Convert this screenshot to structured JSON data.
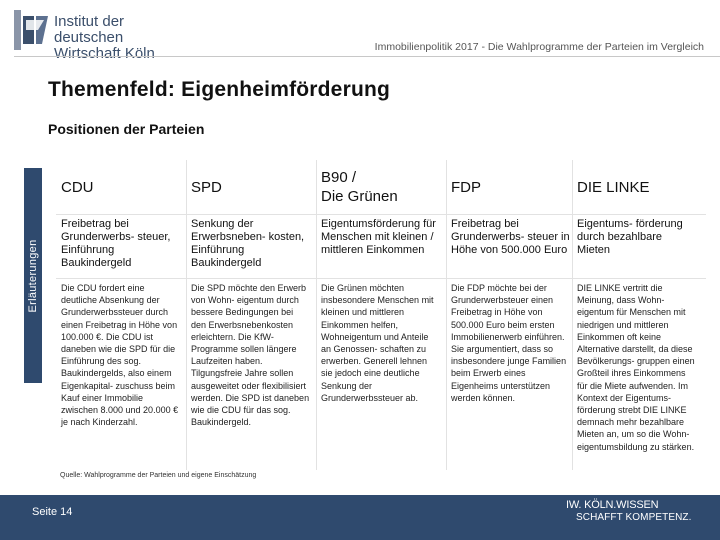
{
  "header": {
    "logo_line1": "Institut der deutschen",
    "logo_line2": "Wirtschaft Köln",
    "subtitle": "Immobilienpolitik 2017 - Die Wahlprogramme der Parteien im Vergleich"
  },
  "title": "Themenfeld: Eigenheimförderung",
  "subtitle": "Positionen der Parteien",
  "side_label": "Erläuterungen",
  "parties": [
    {
      "name_line1": "CDU",
      "name_line2": "",
      "position": "Freibetrag bei Grunderwerbs- steuer, Einführung Baukindergeld",
      "explanation": "Die CDU fordert eine deutliche Absenkung der Grunderwerbssteuer durch einen Freibetrag in Höhe von 100.000 €. Die CDU ist daneben wie die SPD für die Einführung des sog. Baukindergelds, also einem Eigenkapital- zuschuss beim Kauf einer Immobilie zwischen 8.000 und 20.000 € je nach Kinderzahl."
    },
    {
      "name_line1": "SPD",
      "name_line2": "",
      "position": "Senkung der Erwerbsneben- kosten, Einführung Baukindergeld",
      "explanation": "Die SPD möchte den Erwerb von Wohn- eigentum durch bessere Bedingungen bei den Erwerbsnebenkosten erleichtern. Die KfW- Programme sollen längere Laufzeiten haben. Tilgungsfreie Jahre sollen ausgeweitet oder flexibilisiert werden. Die SPD ist daneben wie die CDU für das sog. Baukindergeld."
    },
    {
      "name_line1": "B90 /",
      "name_line2": "Die Grünen",
      "position": "Eigentumsförderung für Menschen mit kleinen / mittleren Einkommen",
      "explanation": "Die Grünen möchten insbesondere Menschen mit kleinen und mittleren Einkommen helfen, Wohneigentum und Anteile an Genossen- schaften zu erwerben. Generell lehnen sie jedoch eine deutliche Senkung der Grunderwerbssteuer ab."
    },
    {
      "name_line1": "FDP",
      "name_line2": "",
      "position": "Freibetrag bei Grunderwerbs- steuer in Höhe von 500.000 Euro",
      "explanation": "Die FDP möchte bei der Grunderwerbsteuer einen Freibetrag in Höhe von 500.000 Euro beim ersten Immobilienerwerb einführen. Sie argumentiert, dass so insbesondere junge Familien beim Erwerb eines Eigenheims unterstützen werden können."
    },
    {
      "name_line1": "DIE LINKE",
      "name_line2": "",
      "position": "Eigentums- förderung durch bezahlbare Mieten",
      "explanation": "DIE LINKE vertritt die Meinung, dass Wohn- eigentum für Menschen mit niedrigen und mittleren Einkommen oft keine Alternative darstellt, da diese Bevölkerungs- gruppen einen Großteil ihres Einkommens für die Miete aufwenden. Im Kontext der Eigentums- förderung strebt DIE LINKE demnach mehr bezahlbare Mieten an, um so die Wohn- eigentumsbildung zu stärken."
    }
  ],
  "source": "Quelle: Wahlprogramme der Parteien und eigene Einschätzung",
  "footer": {
    "page": "Seite 14",
    "claim_line1": "IW. KÖLN.WISSEN",
    "claim_line2": "SCHAFFT KOMPETENZ."
  },
  "colors": {
    "brand_navy": "#2f4a6e",
    "logo_text": "#3b4f6b"
  }
}
